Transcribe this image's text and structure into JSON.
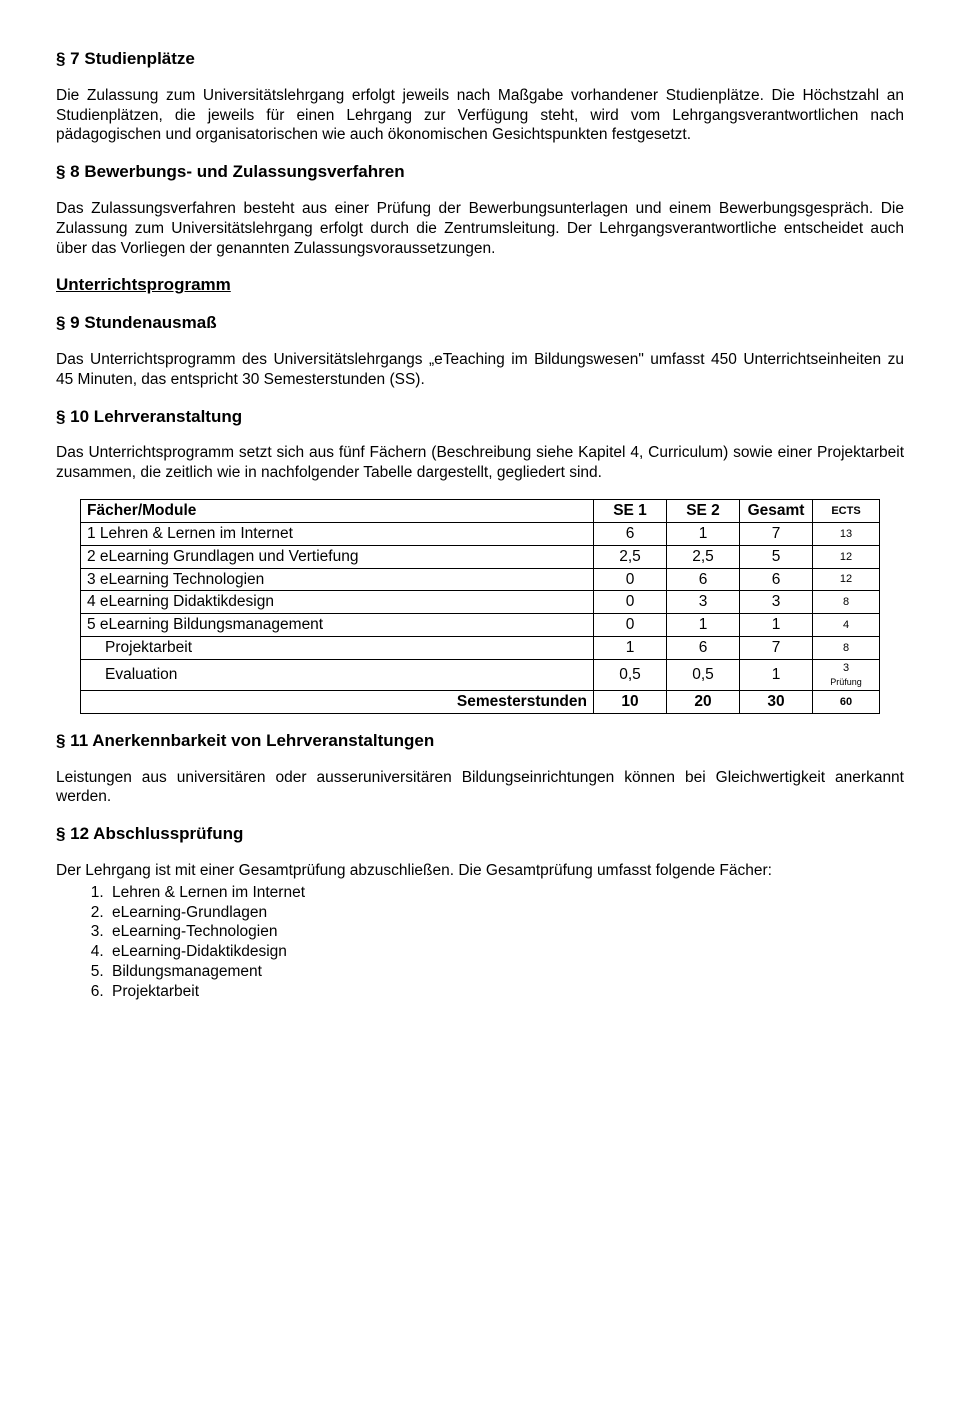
{
  "s7": {
    "title": "§ 7 Studienplätze",
    "p1": "Die Zulassung zum Universitätslehrgang erfolgt jeweils nach Maßgabe vorhandener Studienplätze. Die Höchstzahl an Studienplätzen, die jeweils für einen Lehrgang zur Verfügung steht, wird vom Lehrgangsverantwortlichen nach pädagogischen und organisatorischen wie auch ökonomischen Gesichtspunkten festgesetzt."
  },
  "s8": {
    "title": "§ 8 Bewerbungs- und Zulassungsverfahren",
    "p1": "Das Zulassungsverfahren besteht aus einer Prüfung der Bewerbungsunterlagen und einem Bewerbungsgespräch. Die Zulassung zum Universitätslehrgang erfolgt durch die Zentrumsleitung. Der Lehrgangsverantwortliche entscheidet auch über das Vorliegen der genannten Zulassungsvoraussetzungen."
  },
  "unterricht_title": "Unterrichtsprogramm",
  "s9": {
    "title": "§ 9 Stundenausmaß",
    "p1": "Das Unterrichtsprogramm des Universitätslehrgangs „eTeaching im Bildungswesen\" umfasst 450 Unterrichtseinheiten zu 45 Minuten, das entspricht 30 Semesterstunden (SS)."
  },
  "s10": {
    "title": "§ 10 Lehrveranstaltung",
    "p1": "Das Unterrichtsprogramm setzt sich aus fünf Fächern (Beschreibung siehe Kapitel 4, Curriculum) sowie einer Projektarbeit  zusammen, die zeitlich wie in nachfolgender Tabelle dargestellt, gegliedert sind."
  },
  "table": {
    "headers": {
      "col0": "Fächer/Module",
      "col1": "SE 1",
      "col2": "SE 2",
      "col3": "Gesamt",
      "col4": "ECTS"
    },
    "rows": [
      {
        "name": "1 Lehren & Lernen im Internet",
        "se1": "6",
        "se2": "1",
        "ges": "7",
        "ects": "13",
        "indent": false
      },
      {
        "name": "2 eLearning Grundlagen und Vertiefung",
        "se1": "2,5",
        "se2": "2,5",
        "ges": "5",
        "ects": "12",
        "indent": false
      },
      {
        "name": "3 eLearning Technologien",
        "se1": "0",
        "se2": "6",
        "ges": "6",
        "ects": "12",
        "indent": false
      },
      {
        "name": "4 eLearning Didaktikdesign",
        "se1": "0",
        "se2": "3",
        "ges": "3",
        "ects": "8",
        "indent": false
      },
      {
        "name": "5 eLearning Bildungsmanagement",
        "se1": "0",
        "se2": "1",
        "ges": "1",
        "ects": "4",
        "indent": false
      },
      {
        "name": "Projektarbeit",
        "se1": "1",
        "se2": "6",
        "ges": "7",
        "ects": "8",
        "indent": true
      },
      {
        "name": "Evaluation",
        "se1": "0,5",
        "se2": "0,5",
        "ges": "1",
        "ects": "3\nPrüfung",
        "indent": true
      }
    ],
    "total": {
      "label": "Semesterstunden",
      "se1": "10",
      "se2": "20",
      "ges": "30",
      "ects": "60"
    }
  },
  "s11": {
    "title": "§ 11 Anerkennbarkeit von Lehrveranstaltungen",
    "p1": "Leistungen aus universitären oder ausseruniversitären Bildungseinrichtungen können bei Gleichwertigkeit anerkannt werden."
  },
  "s12": {
    "title": "§ 12 Abschlussprüfung",
    "p1": "Der Lehrgang ist mit einer Gesamtprüfung abzuschließen. Die Gesamtprüfung umfasst folgende Fächer:",
    "items": [
      "Lehren & Lernen im Internet",
      "eLearning-Grundlagen",
      "eLearning-Technologien",
      "eLearning-Didaktikdesign",
      "Bildungsmanagement",
      "Projektarbeit"
    ]
  }
}
